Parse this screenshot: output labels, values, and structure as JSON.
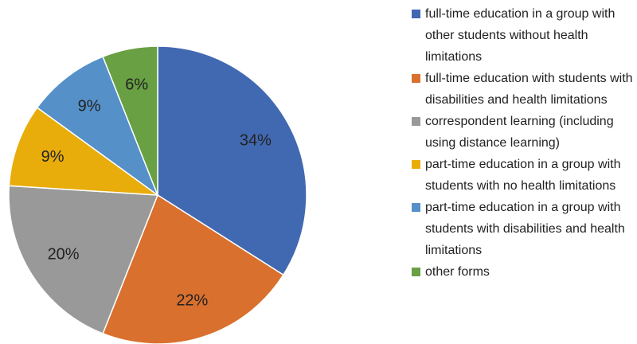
{
  "chart_data": {
    "type": "pie",
    "categories": [
      "full-time education in a group with other students without health limitations",
      "full-time education with students with disabilities and health limitations",
      "correspondent learning (including using distance learning)",
      "part-time education in a group with students with no health limitations",
      "part-time education in a group with students with disabilities and health limitations",
      "other forms"
    ],
    "values": [
      34,
      22,
      20,
      9,
      9,
      6
    ],
    "value_labels": [
      "34%",
      "22%",
      "20%",
      "9%",
      "9%",
      "6%"
    ],
    "colors": [
      "#4169b1",
      "#d9702e",
      "#999999",
      "#e8ad0b",
      "#5590c8",
      "#68a043"
    ],
    "legend": "right"
  }
}
